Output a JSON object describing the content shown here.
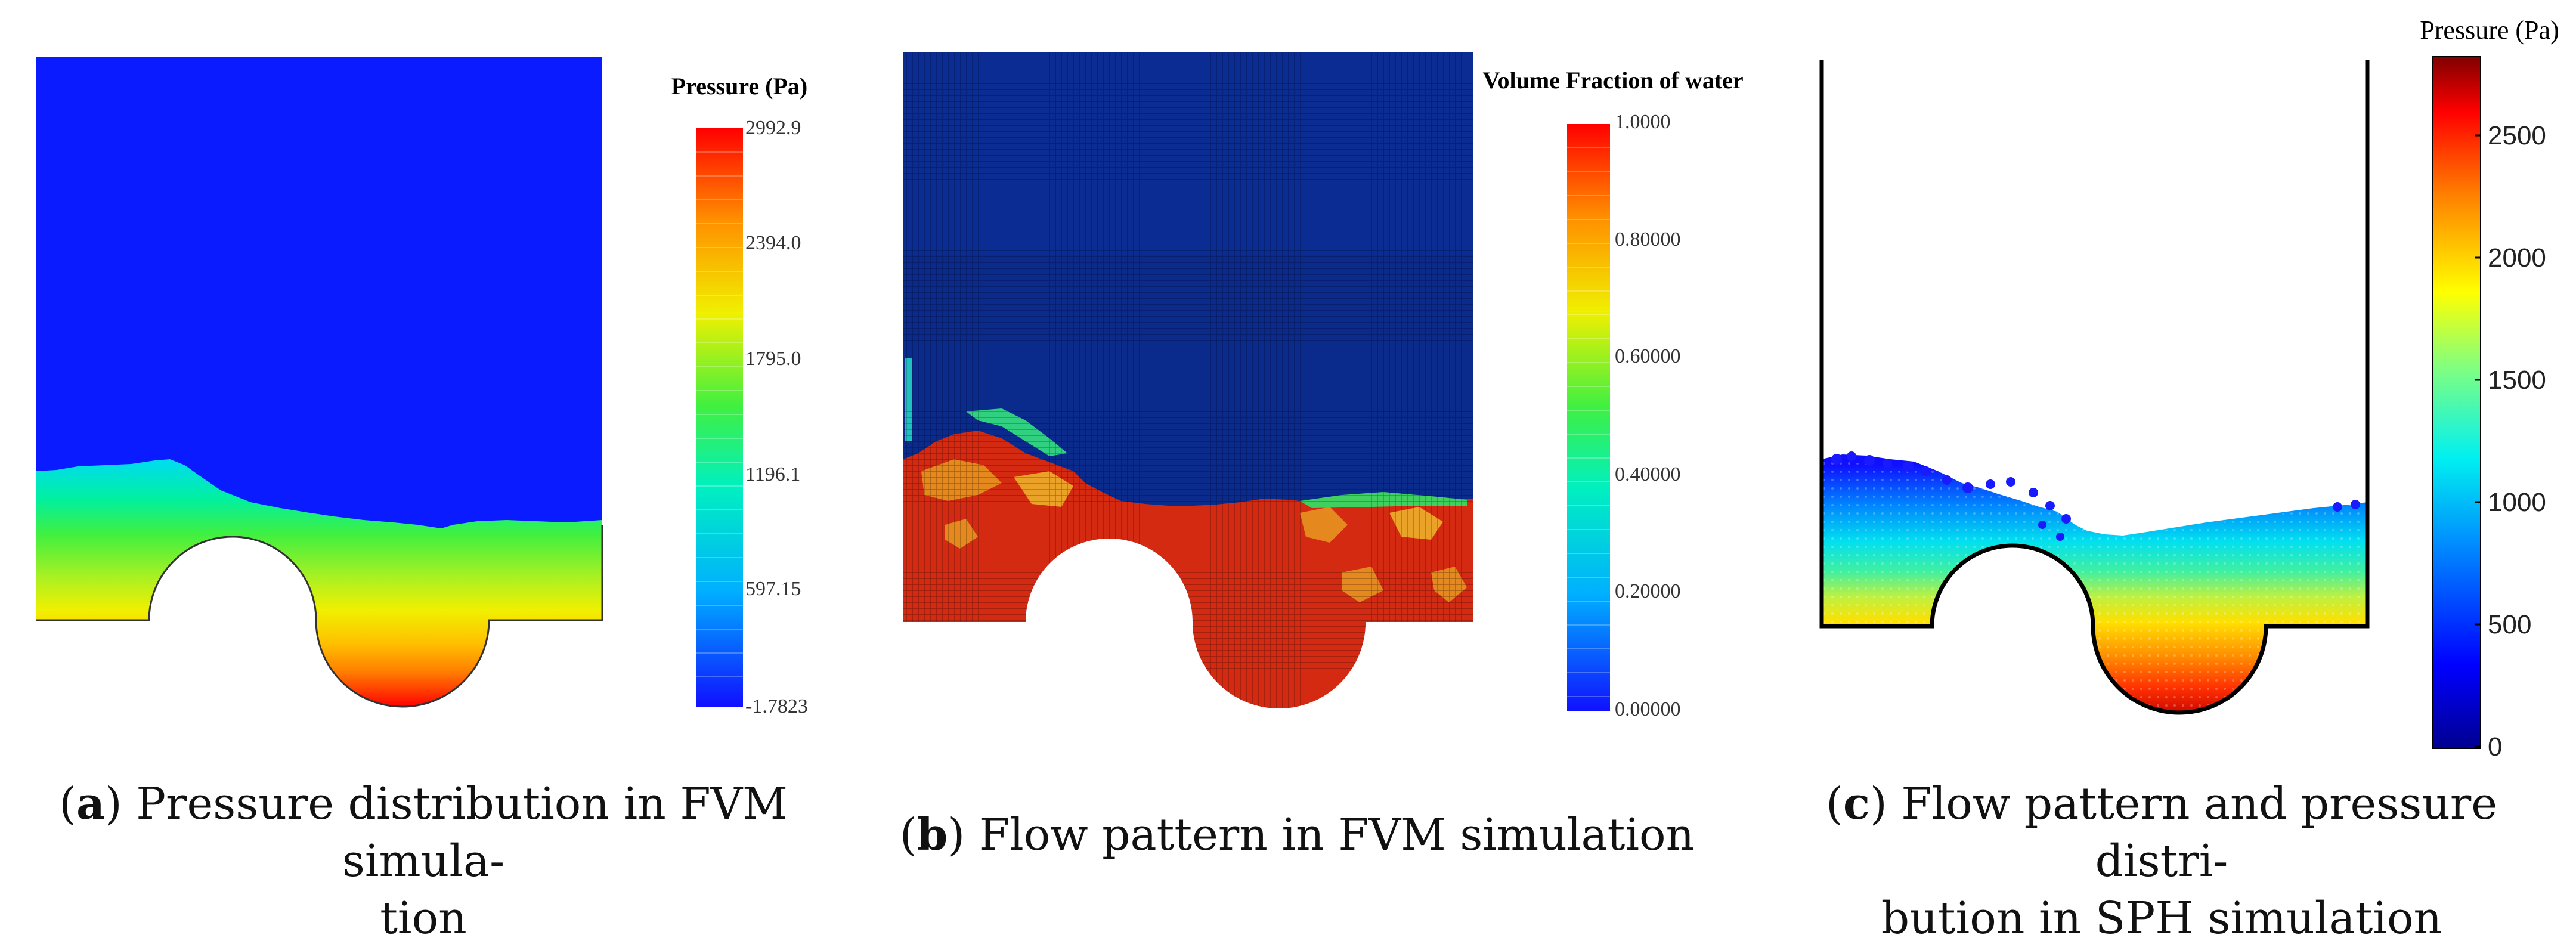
{
  "figure": {
    "panels": [
      {
        "id": "a",
        "colorbar_title": "Pressure (Pa)",
        "colorbar_ticks": [
          "2992.9",
          "2394.0",
          "1795.0",
          "1196.1",
          "597.15",
          "-1.7823"
        ],
        "caption_letter": "a",
        "caption_line1": "Pressure distribution in FVM simula-",
        "caption_line2": "tion"
      },
      {
        "id": "b",
        "colorbar_title": "Volume Fraction of water",
        "colorbar_ticks": [
          "1.0000",
          "0.80000",
          "0.60000",
          "0.40000",
          "0.20000",
          "0.00000"
        ],
        "caption_letter": "b",
        "caption_line1": "Flow pattern in FVM simulation"
      },
      {
        "id": "c",
        "colorbar_title": "Pressure (Pa)",
        "colorbar_ticks": [
          "2500",
          "2000",
          "1500",
          "1000",
          "500",
          "0"
        ],
        "caption_letter": "c",
        "caption_line1": "Flow pattern and pressure distri-",
        "caption_line2": "bution in SPH simulation"
      }
    ],
    "colors": {
      "fvm_blue": "#0a1bff",
      "mesh_dark_blue": "#0a2a8c",
      "water_red": "#d42a12",
      "sph_dark_red": "#7a0000"
    }
  }
}
